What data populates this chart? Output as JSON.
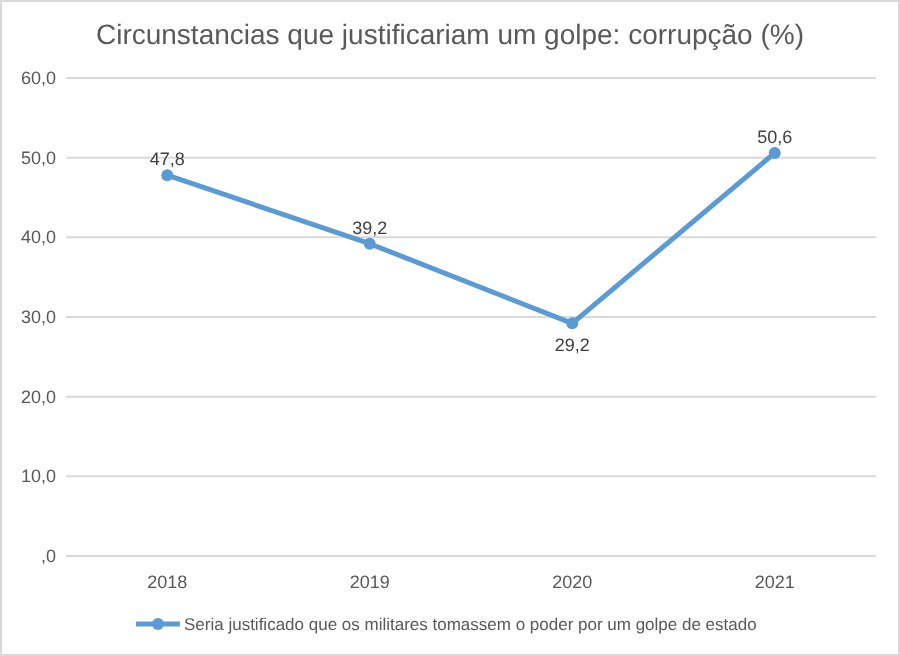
{
  "chart_data": {
    "type": "line",
    "title": "Circunstancias que justificariam um golpe: corrupção (%)",
    "categories": [
      "2018",
      "2019",
      "2020",
      "2021"
    ],
    "series": [
      {
        "name": "Seria justificado que os militares tomassem o poder por um golpe de estado",
        "color": "#5b9bd5",
        "values": [
          47.8,
          39.2,
          29.2,
          50.6
        ],
        "value_labels": [
          "47,8",
          "39,2",
          "29,2",
          "50,6"
        ]
      }
    ],
    "ylim": [
      0,
      60
    ],
    "yticks": [
      {
        "value": 0,
        "label": ",0"
      },
      {
        "value": 10,
        "label": "10,0"
      },
      {
        "value": 20,
        "label": "20,0"
      },
      {
        "value": 30,
        "label": "30,0"
      },
      {
        "value": 40,
        "label": "40,0"
      },
      {
        "value": 50,
        "label": "50,0"
      },
      {
        "value": 60,
        "label": "60,0"
      }
    ],
    "grid": "y",
    "legend": "bottom",
    "marker": "circle",
    "line_style": "solid"
  }
}
